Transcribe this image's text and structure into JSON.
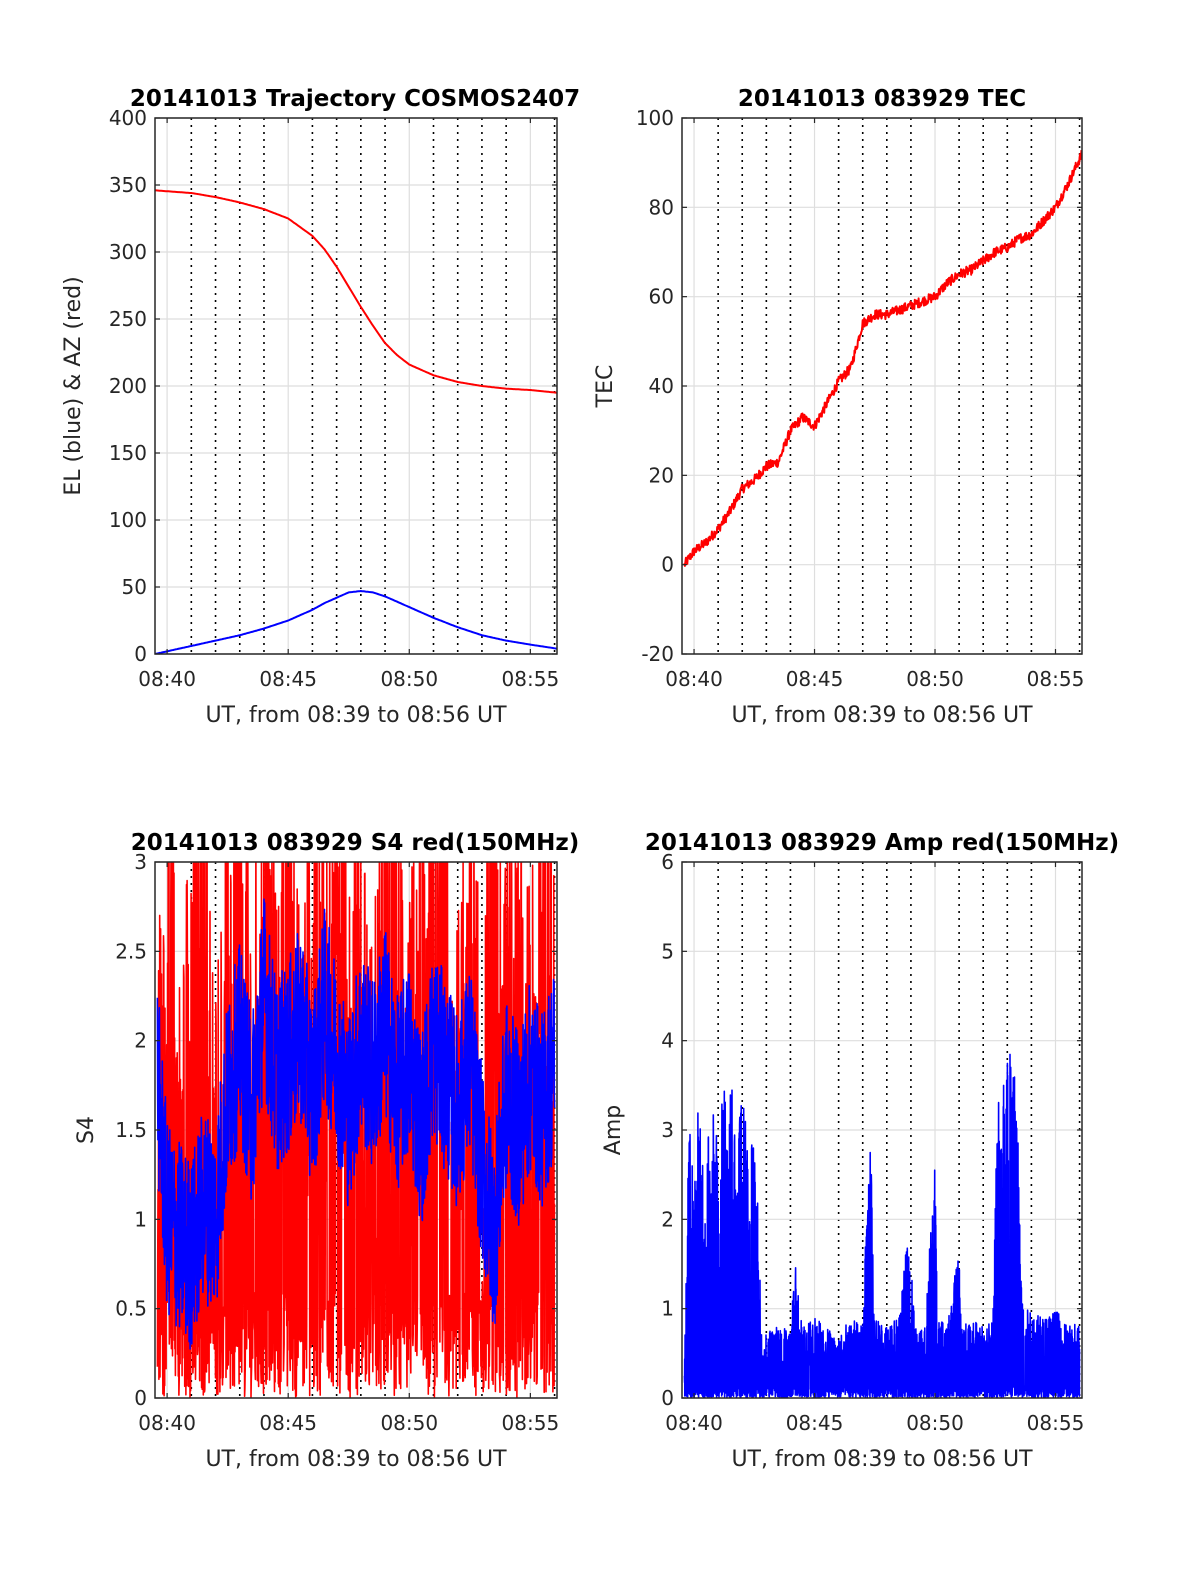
{
  "chart_data": [
    {
      "type": "line",
      "title": "20141013 Trajectory COSMOS2407",
      "xlabel": "UT, from 08:39 to 08:56 UT",
      "ylabel": "EL (blue) & AZ (red)",
      "xticks": [
        "08:40",
        "08:45",
        "08:50",
        "08:55"
      ],
      "xtick_values": [
        40,
        45,
        50,
        55
      ],
      "xlim": [
        39.5,
        56.1
      ],
      "ylim": [
        0,
        400
      ],
      "yticks": [
        0,
        50,
        100,
        150,
        200,
        250,
        300,
        350,
        400
      ],
      "grid": true,
      "series": [
        {
          "color": "#ff0000",
          "x": [
            39.5,
            41,
            42,
            43,
            44,
            45,
            46,
            46.5,
            47,
            47.5,
            48,
            48.5,
            49,
            49.5,
            50,
            51,
            52,
            53,
            54,
            55,
            56.1
          ],
          "values": [
            346,
            344,
            341,
            337,
            332,
            325,
            312,
            302,
            289,
            274,
            259,
            245,
            232,
            223,
            216,
            208,
            203,
            200,
            198,
            197,
            195
          ]
        },
        {
          "color": "#0000ff",
          "x": [
            39.5,
            41,
            42,
            43,
            44,
            45,
            46,
            46.5,
            47,
            47.5,
            48,
            48.5,
            49,
            49.5,
            50,
            51,
            52,
            53,
            54,
            55,
            56.1
          ],
          "values": [
            0,
            6,
            10,
            14,
            19,
            25,
            33,
            38,
            42,
            46,
            47,
            46,
            43,
            39,
            35,
            27,
            20,
            14,
            10,
            7,
            4
          ]
        }
      ]
    },
    {
      "type": "line",
      "title": "20141013 083929 TEC",
      "xlabel": "UT, from 08:39 to 08:56 UT",
      "ylabel": "TEC",
      "xticks": [
        "08:40",
        "08:45",
        "08:50",
        "08:55"
      ],
      "xtick_values": [
        40,
        45,
        50,
        55
      ],
      "xlim": [
        39.5,
        56.1
      ],
      "ylim": [
        -20,
        100
      ],
      "yticks": [
        -20,
        0,
        20,
        40,
        60,
        80,
        100
      ],
      "grid": true,
      "series": [
        {
          "color": "#ff0000",
          "x": [
            39.6,
            40,
            40.5,
            41,
            41.5,
            42,
            42.5,
            43,
            43.5,
            44,
            44.5,
            45,
            45.5,
            46,
            46.5,
            47,
            47.5,
            48,
            48.5,
            49,
            49.5,
            50,
            50.5,
            51,
            51.5,
            52,
            52.5,
            53,
            53.5,
            54,
            54.5,
            55,
            55.5,
            56.1
          ],
          "values": [
            0,
            3,
            5,
            8,
            12,
            17,
            19,
            22,
            23,
            30,
            33,
            31,
            36,
            41,
            44,
            54,
            56,
            56,
            57,
            58,
            59,
            60,
            63,
            65,
            66,
            68,
            70,
            71,
            73,
            74,
            77,
            80,
            85,
            92
          ]
        }
      ]
    },
    {
      "type": "line",
      "title": "20141013 083929 S4 red(150MHz)",
      "xlabel": "UT, from 08:39 to 08:56 UT",
      "ylabel": "S4",
      "xticks": [
        "08:40",
        "08:45",
        "08:50",
        "08:55"
      ],
      "xtick_values": [
        40,
        45,
        50,
        55
      ],
      "xlim": [
        39.5,
        56.1
      ],
      "ylim": [
        0,
        3
      ],
      "yticks": [
        0,
        0.5,
        1,
        1.5,
        2,
        2.5,
        3
      ],
      "ytick_labels": [
        "0",
        "0.5",
        "1",
        "1.5",
        "2",
        "2.5",
        "3"
      ],
      "grid": true,
      "series": [
        {
          "color": "#ff0000",
          "x": [
            39.6,
            40,
            40.5,
            41,
            41.5,
            42,
            42.5,
            43,
            43.5,
            44,
            44.5,
            45,
            45.5,
            46,
            46.5,
            47,
            47.5,
            48,
            48.5,
            49,
            49.5,
            50,
            50.5,
            51,
            51.5,
            52,
            52.5,
            53,
            53.5,
            54,
            54.5,
            55,
            55.5,
            56
          ],
          "values": [
            0.9,
            2.2,
            0.8,
            1.8,
            2.5,
            0.7,
            2.9,
            2.0,
            1.2,
            2.8,
            1.5,
            2.6,
            0.9,
            2.4,
            1.7,
            2.9,
            1.4,
            2.2,
            0.8,
            2.7,
            1.9,
            1.1,
            2.5,
            1.6,
            2.8,
            1.3,
            2.3,
            0.9,
            2.9,
            1.7,
            2.1,
            1.2,
            2.6,
            1.5
          ]
        },
        {
          "color": "#0000ff",
          "x": [
            39.6,
            40,
            40.5,
            41,
            41.5,
            42,
            42.5,
            43,
            43.5,
            44,
            44.5,
            45,
            45.5,
            46,
            46.5,
            47,
            47.5,
            48,
            48.5,
            49,
            49.5,
            50,
            50.5,
            51,
            51.5,
            52,
            52.5,
            53,
            53.5,
            54,
            54.5,
            55,
            55.5,
            56
          ],
          "values": [
            1.8,
            1.0,
            0.9,
            0.8,
            1.1,
            1.0,
            1.7,
            2.0,
            1.6,
            2.3,
            1.8,
            1.9,
            2.1,
            1.7,
            2.2,
            1.9,
            1.6,
            2.0,
            1.8,
            2.1,
            1.7,
            1.9,
            1.5,
            2.0,
            1.8,
            1.6,
            1.9,
            1.3,
            0.9,
            1.7,
            1.5,
            1.8,
            1.6,
            1.9
          ]
        }
      ]
    },
    {
      "type": "line",
      "title": "20141013 083929 Amp red(150MHz)",
      "xlabel": "UT, from 08:39 to 08:56 UT",
      "ylabel": "Amp",
      "xticks": [
        "08:40",
        "08:45",
        "08:50",
        "08:55"
      ],
      "xtick_values": [
        40,
        45,
        50,
        55
      ],
      "xlim": [
        39.5,
        56.1
      ],
      "ylim": [
        0,
        6
      ],
      "yticks": [
        0,
        1,
        2,
        3,
        4,
        5,
        6
      ],
      "grid": true,
      "series": [
        {
          "color": "#0000ff",
          "x": [
            39.6,
            39.8,
            40.0,
            40.2,
            40.4,
            40.6,
            40.8,
            41.0,
            41.2,
            41.4,
            41.6,
            41.8,
            42.0,
            42.2,
            42.4,
            42.6,
            42.8,
            43.0,
            43.5,
            44.0,
            44.2,
            44.5,
            45.0,
            45.5,
            46.0,
            46.5,
            47.0,
            47.3,
            47.5,
            48.0,
            48.5,
            48.9,
            49.2,
            49.6,
            50.0,
            50.1,
            50.5,
            51.0,
            51.1,
            51.5,
            52.0,
            52.4,
            52.6,
            52.8,
            53.0,
            53.2,
            53.4,
            53.6,
            54.0,
            54.5,
            55.0,
            55.5,
            56.0
          ],
          "values": [
            0.3,
            3.3,
            2.2,
            3.5,
            2.4,
            3.0,
            3.2,
            2.8,
            3.6,
            3.1,
            3.7,
            2.9,
            3.5,
            3.0,
            2.9,
            2.6,
            0.8,
            0.7,
            0.9,
            0.8,
            1.5,
            0.8,
            0.9,
            0.8,
            0.7,
            0.9,
            0.8,
            3.2,
            0.9,
            0.8,
            0.9,
            1.9,
            0.8,
            0.9,
            2.7,
            0.9,
            0.8,
            1.7,
            0.8,
            0.9,
            0.8,
            0.9,
            3.6,
            3.7,
            3.9,
            4.2,
            3.6,
            1.2,
            1.0,
            0.9,
            1.0,
            0.8,
            0.9
          ]
        }
      ]
    }
  ]
}
